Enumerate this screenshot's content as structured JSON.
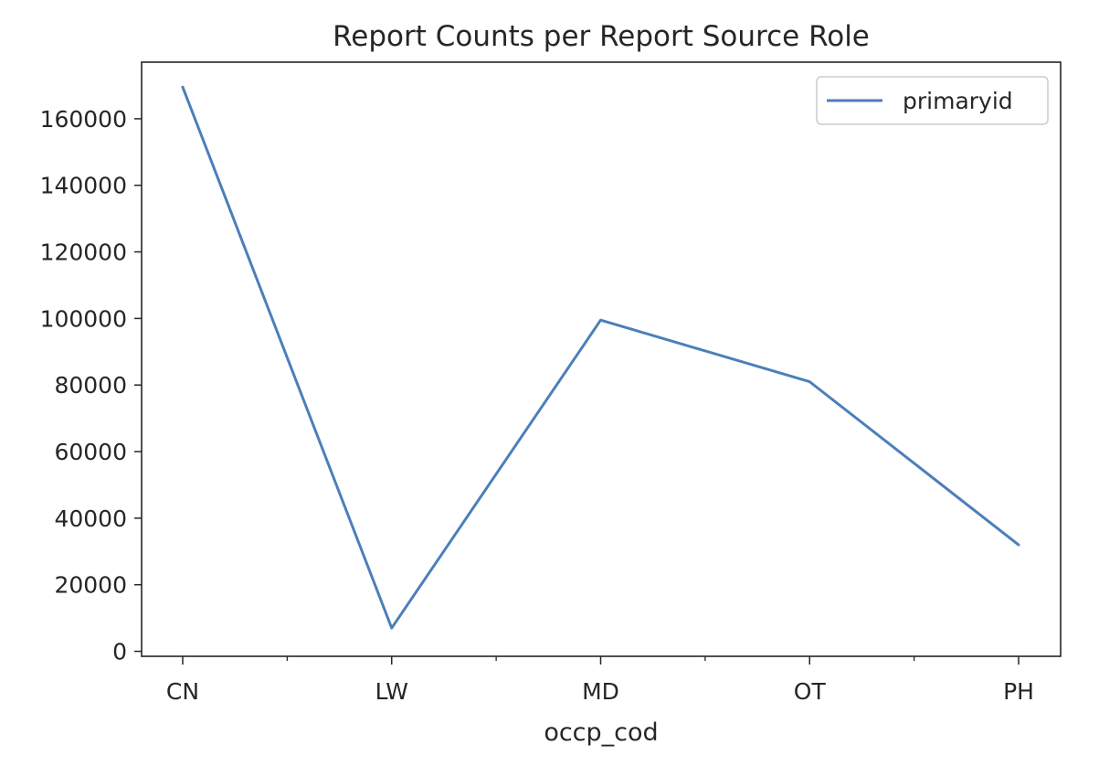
{
  "chart_data": {
    "type": "line",
    "title": "Report Counts per Report Source Role",
    "xlabel": "occp_cod",
    "ylabel": "",
    "categories": [
      "CN",
      "LW",
      "MD",
      "OT",
      "PH"
    ],
    "series": [
      {
        "name": "primaryid",
        "values": [
          169500,
          7000,
          99500,
          81000,
          32000
        ],
        "color": "#4c7fba"
      }
    ],
    "ylim": [
      -1500,
      177000
    ],
    "yticks": [
      0,
      20000,
      40000,
      60000,
      80000,
      100000,
      120000,
      140000,
      160000
    ],
    "grid": false,
    "legend_position": "top-right"
  }
}
